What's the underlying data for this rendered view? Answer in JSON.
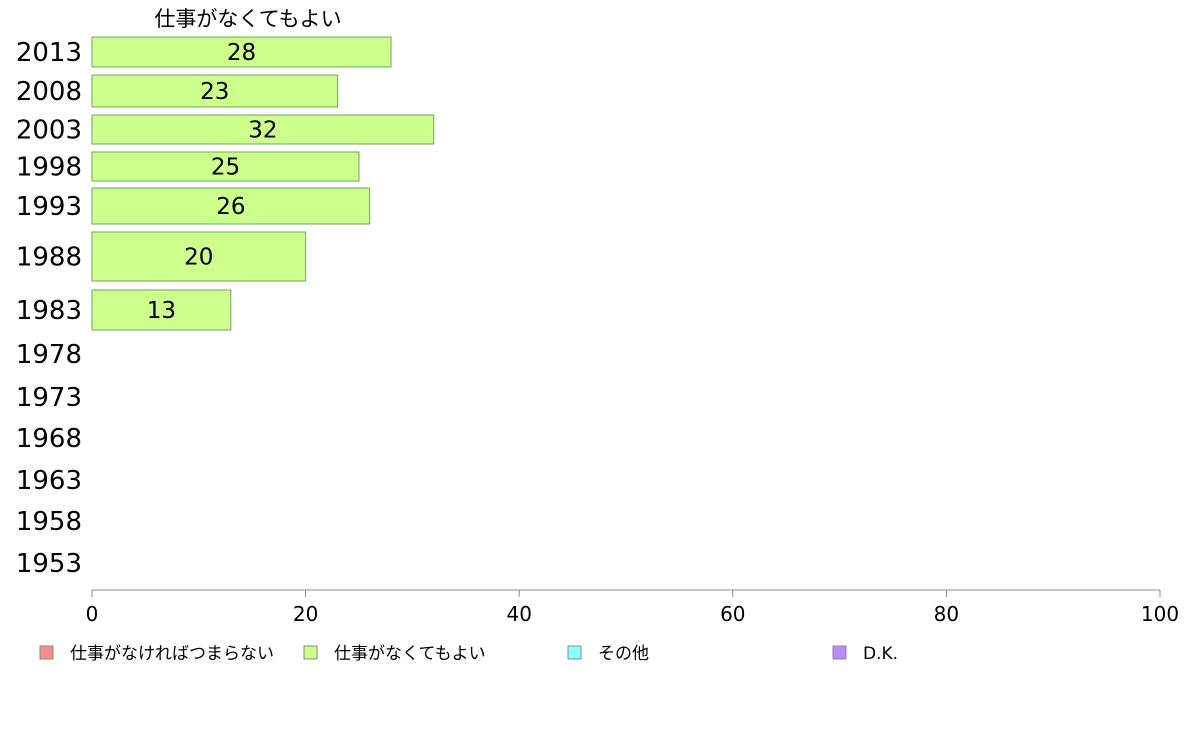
{
  "chart_data": {
    "type": "bar",
    "orientation": "horizontal",
    "title": "仕事がなくてもよい",
    "categories": [
      "2013",
      "2008",
      "2003",
      "1998",
      "1993",
      "1988",
      "1983",
      "1978",
      "1973",
      "1968",
      "1963",
      "1958",
      "1953"
    ],
    "series": [
      {
        "name": "仕事がなくてもよい",
        "values": [
          28,
          23,
          32,
          25,
          26,
          20,
          13,
          null,
          null,
          null,
          null,
          null,
          null
        ]
      }
    ],
    "x_ticks": [
      "0",
      "20",
      "40",
      "60",
      "80",
      "100"
    ],
    "xlim": [
      0,
      100
    ],
    "grid": false,
    "legend_position": "bottom",
    "legend": [
      {
        "label": "仕事がなければつまらない",
        "color": "#ff8c8c"
      },
      {
        "label": "仕事がなくてもよい",
        "color": "#ccff8c"
      },
      {
        "label": "その他",
        "color": "#8cffff"
      },
      {
        "label": "D.K.",
        "color": "#b88cff"
      }
    ],
    "bar_color": "#ccff8c",
    "bar_border_color": "#6ea85a",
    "axis_color": "#888888"
  }
}
